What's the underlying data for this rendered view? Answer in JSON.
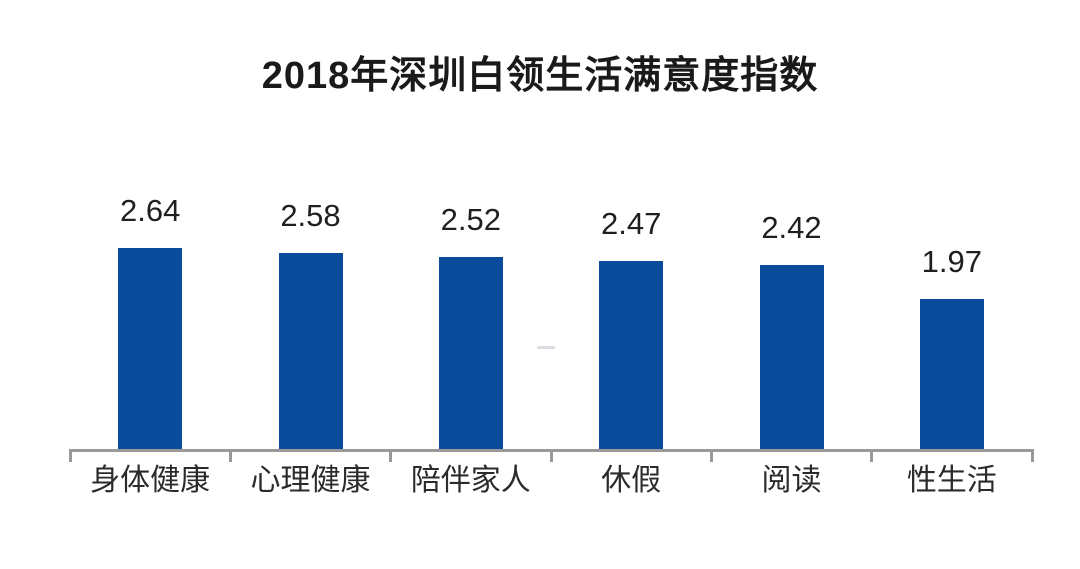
{
  "chart_data": {
    "type": "bar",
    "title": "2018年深圳白领生活满意度指数",
    "categories": [
      "身体健康",
      "心理健康",
      "陪伴家人",
      "休假",
      "阅读",
      "性生活"
    ],
    "values": [
      2.64,
      2.58,
      2.52,
      2.47,
      2.42,
      1.97
    ],
    "value_labels": [
      "2.64",
      "2.58",
      "2.52",
      "2.47",
      "2.42",
      "1.97"
    ],
    "xlabel": "",
    "ylabel": "",
    "ylim": [
      0,
      3
    ],
    "grid": false,
    "legend": "none",
    "data_labels_position": "above-bars",
    "axis_ticks": "bottom-boundaries",
    "colors": {
      "bar": "#0b4b9b",
      "axis": "#999999",
      "title_text": "#1a1a1a",
      "value_text": "#1f1f1f",
      "category_text": "#2b2b2b",
      "background": "#ffffff"
    }
  }
}
